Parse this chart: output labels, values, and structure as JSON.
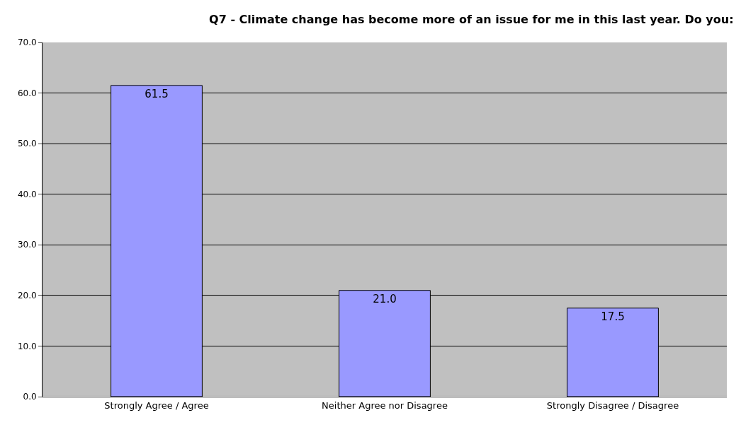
{
  "chart_data": {
    "type": "bar",
    "title": "Q7 - Climate change has become more of an issue for me in this last year. Do you:",
    "categories": [
      "Strongly Agree / Agree",
      "Neither Agree nor Disagree",
      "Strongly Disagree / Disagree"
    ],
    "values": [
      61.5,
      21.0,
      17.5
    ],
    "color": "#9999ff",
    "value_labels": [
      "61.5",
      "21.0",
      "17.5"
    ],
    "ylim": [
      0,
      70
    ],
    "yticks": [
      {
        "value": 0,
        "label": "0.0"
      },
      {
        "value": 10,
        "label": "10.0"
      },
      {
        "value": 20,
        "label": "20.0"
      },
      {
        "value": 30,
        "label": "30.0"
      },
      {
        "value": 40,
        "label": "40.0"
      },
      {
        "value": 50,
        "label": "50.0"
      },
      {
        "value": 60,
        "label": "60.0"
      },
      {
        "value": 70,
        "label": "70.0"
      }
    ],
    "grid": "y",
    "legend": false
  }
}
